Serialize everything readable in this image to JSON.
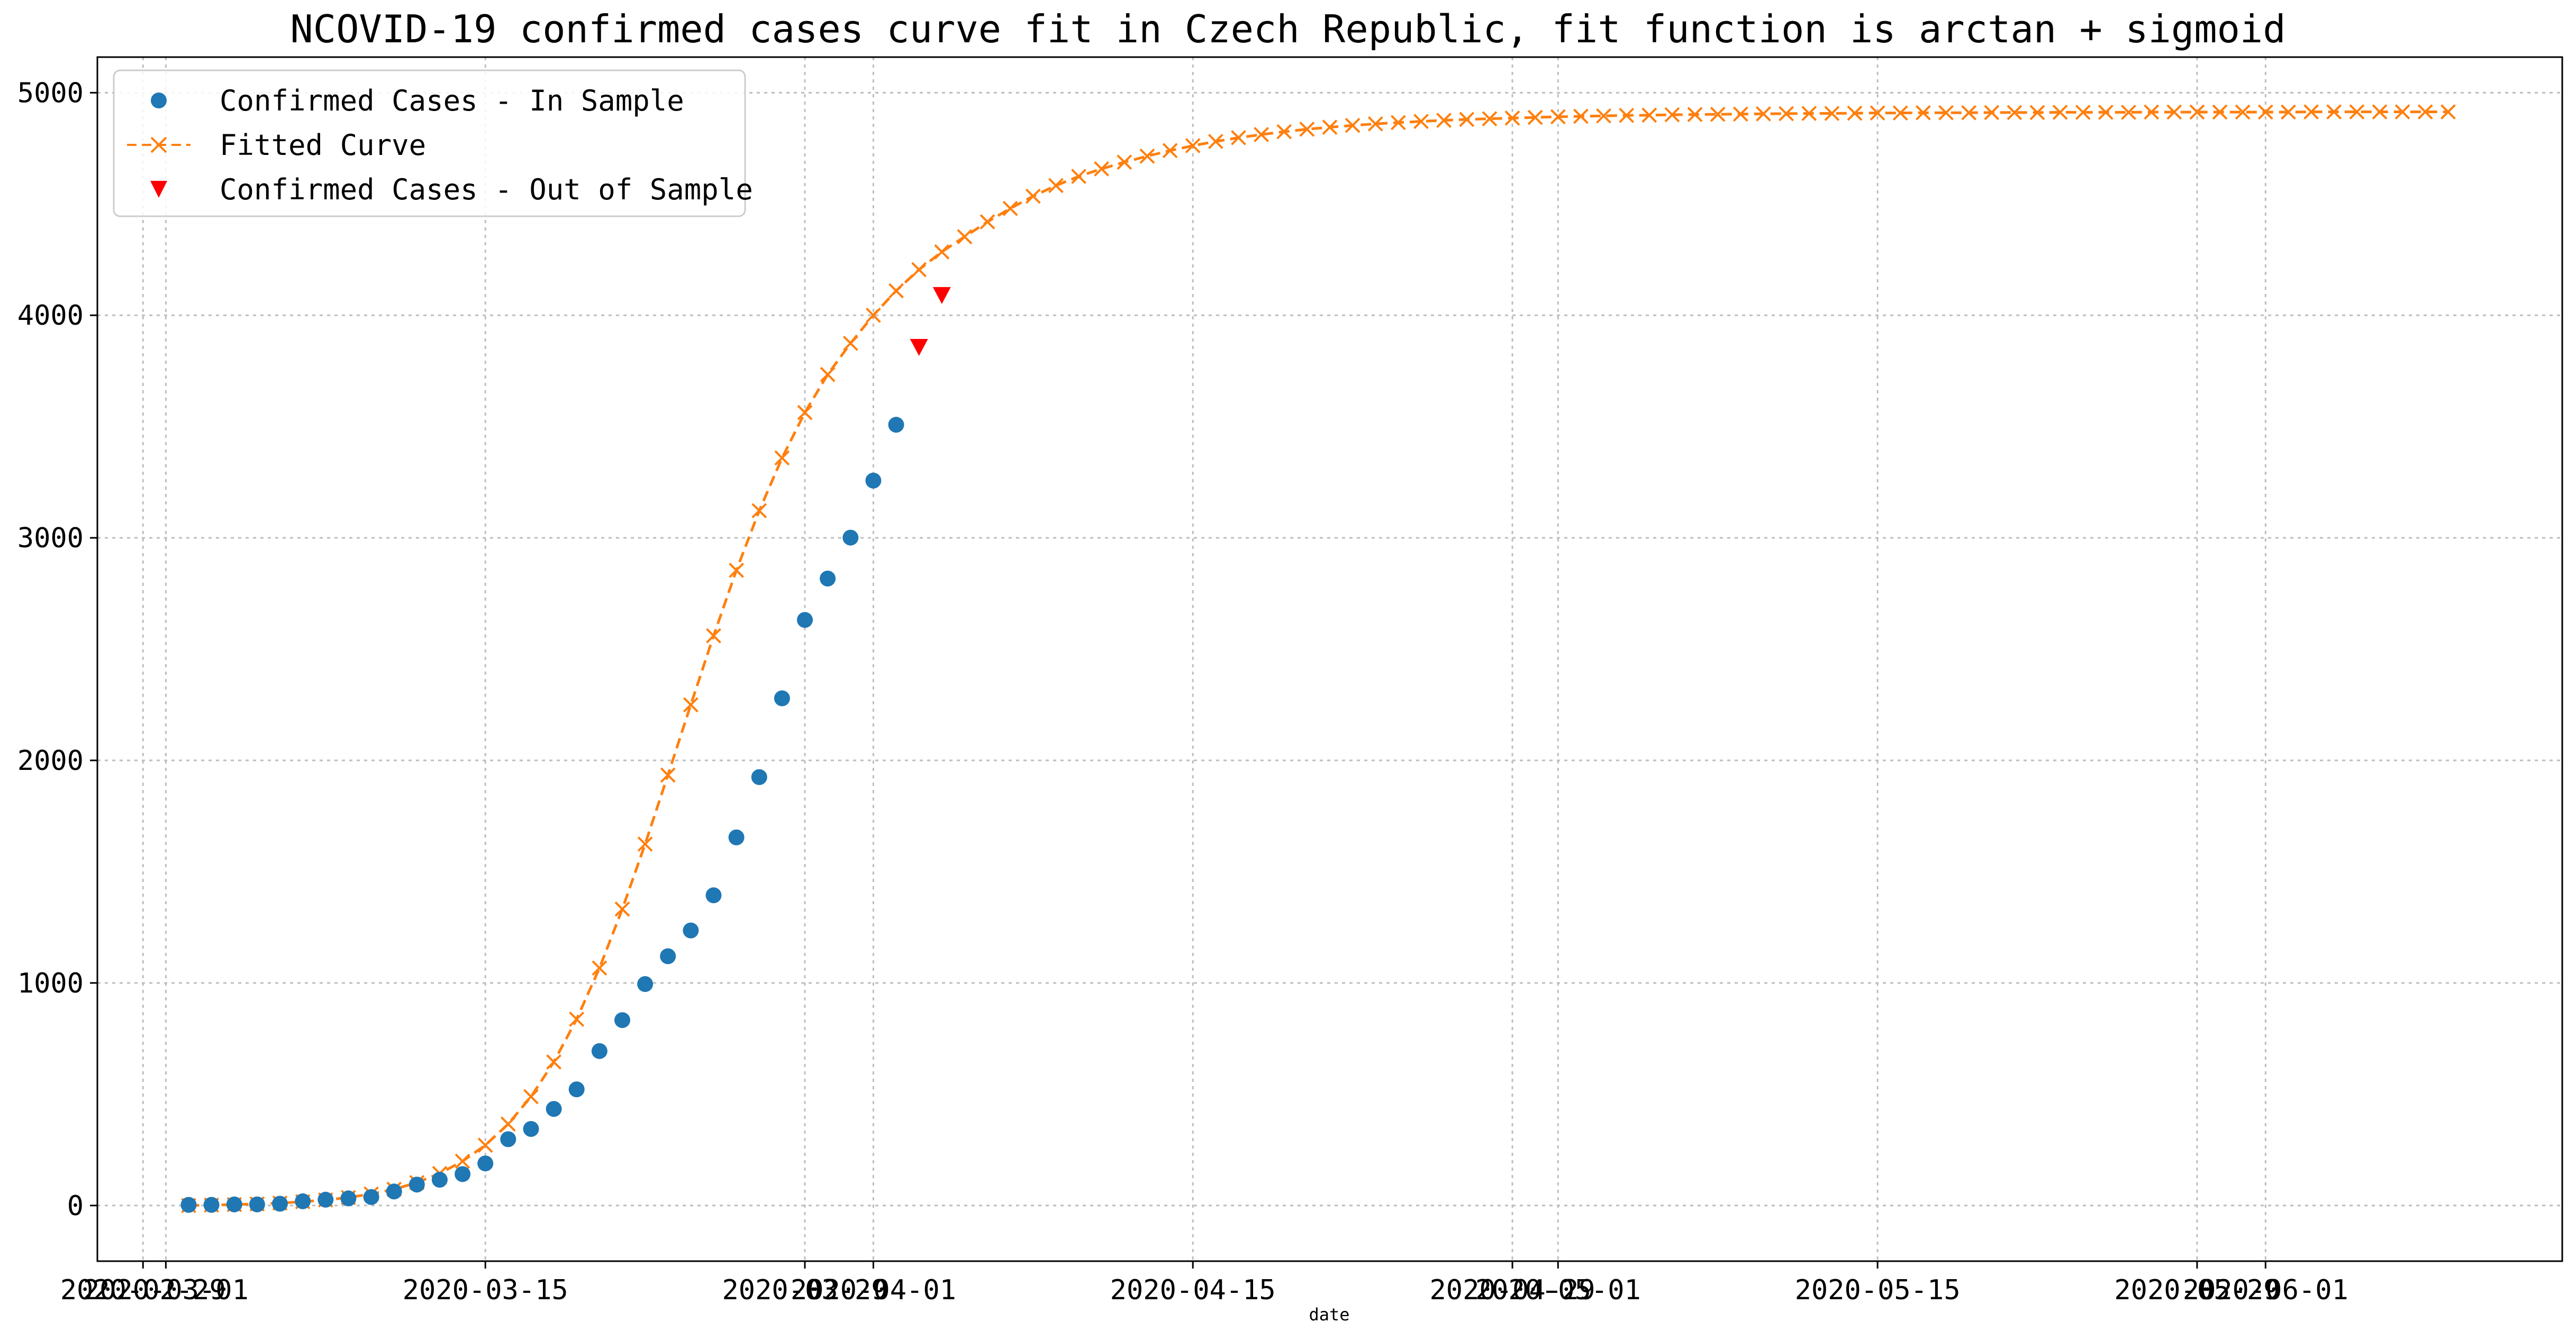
{
  "colors": {
    "in_sample": "#1f77b4",
    "fitted": "#ff7f0e",
    "out_of_sample": "#ff0000",
    "grid": "#bdbdbd",
    "axis": "#000000"
  },
  "chart_data": {
    "type": "line",
    "title": "NCOVID-19 confirmed cases curve fit in Czech Republic, fit function is arctan + sigmoid",
    "xlabel": "date",
    "ylabel": "",
    "x_axis": {
      "type": "date",
      "ticks": [
        {
          "date": "2020-02-29",
          "label": "2020-02-29"
        },
        {
          "date": "2020-03-01",
          "label": "2020-03-01"
        },
        {
          "date": "2020-03-15",
          "label": "2020-03-15"
        },
        {
          "date": "2020-03-29",
          "label": "2020-03-29"
        },
        {
          "date": "2020-04-01",
          "label": "2020-04-01"
        },
        {
          "date": "2020-04-15",
          "label": "2020-04-15"
        },
        {
          "date": "2020-04-29",
          "label": "2020-04-29"
        },
        {
          "date": "2020-05-01",
          "label": "2020-05-01"
        },
        {
          "date": "2020-05-15",
          "label": "2020-05-15"
        },
        {
          "date": "2020-05-29",
          "label": "2020-05-29"
        },
        {
          "date": "2020-06-01",
          "label": "2020-06-01"
        }
      ],
      "range": [
        "2020-02-27",
        "2020-06-14"
      ]
    },
    "y_axis": {
      "ticks": [
        0,
        1000,
        2000,
        3000,
        4000,
        5000
      ],
      "range": [
        -250,
        5160
      ]
    },
    "grid": true,
    "legend": {
      "position": "top-left",
      "entries": [
        {
          "key": "in_sample",
          "label": "Confirmed Cases - In Sample",
          "marker": "circle"
        },
        {
          "key": "fitted",
          "label": "Fitted Curve",
          "marker": "x-dashed-line"
        },
        {
          "key": "out_of_sample",
          "label": "Confirmed Cases - Out of Sample",
          "marker": "triangle-down"
        }
      ]
    },
    "series": [
      {
        "key": "in_sample",
        "type": "scatter",
        "x_start": "2020-03-02",
        "values": [
          3,
          3,
          5,
          5,
          8,
          19,
          26,
          32,
          38,
          63,
          94,
          116,
          141,
          189,
          298,
          344,
          434,
          522,
          694,
          833,
          995,
          1120,
          1236,
          1394,
          1654,
          1925,
          2279,
          2631,
          2817,
          3001,
          3257,
          3508
        ]
      },
      {
        "key": "out_of_sample",
        "type": "scatter",
        "x_start": "2020-04-03",
        "values": [
          3858,
          4091
        ]
      },
      {
        "key": "fitted",
        "type": "line",
        "x_start": "2020-03-02",
        "values": [
          0,
          2,
          4,
          7,
          11,
          17,
          25,
          36,
          52,
          73,
          103,
          144,
          199,
          271,
          366,
          489,
          645,
          837,
          1067,
          1332,
          1624,
          1934,
          2250,
          2560,
          2854,
          3122,
          3359,
          3563,
          3734,
          3874,
          4000,
          4110,
          4205,
          4285,
          4353,
          4420,
          4480,
          4535,
          4583,
          4624,
          4658,
          4688,
          4715,
          4740,
          4762,
          4781,
          4798,
          4812,
          4825,
          4836,
          4845,
          4853,
          4860,
          4866,
          4871,
          4876,
          4880,
          4883,
          4886,
          4889,
          4892,
          4894,
          4896,
          4898,
          4899,
          4901,
          4902,
          4903,
          4904,
          4905,
          4906,
          4907,
          4907,
          4908,
          4909,
          4909,
          4910,
          4910,
          4910,
          4911,
          4911,
          4911,
          4912,
          4912,
          4912,
          4912,
          4913,
          4913,
          4913,
          4913,
          4913,
          4913,
          4913,
          4914,
          4914,
          4914,
          4914,
          4914,
          4914,
          4914
        ]
      }
    ]
  }
}
